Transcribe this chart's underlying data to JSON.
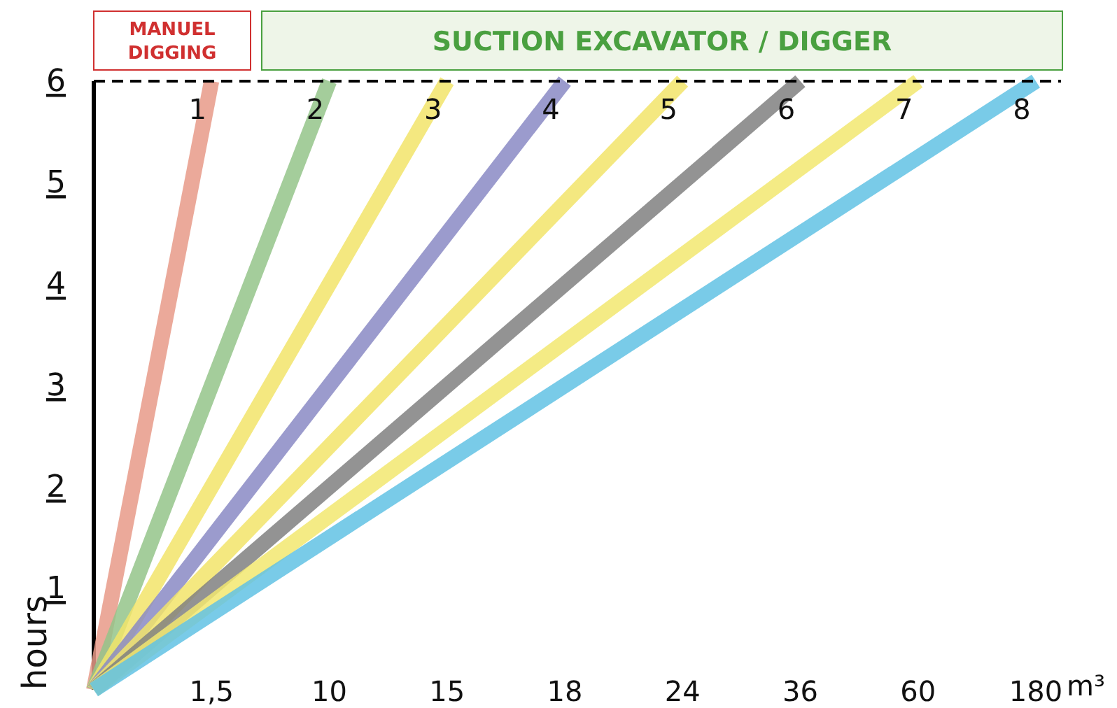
{
  "chart_data": {
    "type": "line",
    "ylabel": "hours",
    "xlabel": "m³",
    "categories": [
      null,
      "1,5",
      "10",
      "15",
      "18",
      "24",
      "36",
      "60",
      "180"
    ],
    "ylim": [
      0,
      6
    ],
    "yticks": [
      1,
      2,
      3,
      4,
      5,
      6
    ],
    "grid": false,
    "legend": false,
    "marker": "none",
    "line_style": "solid",
    "ref_lines": [
      {
        "axis": "y",
        "value": 6,
        "label": null,
        "color": "#000000",
        "line_style": "dashed"
      }
    ],
    "annotations": [
      "MANUEL DIGGING",
      "SUCTION EXCAVATOR / DIGGER"
    ],
    "series": [
      {
        "name": "1",
        "color": "#e89a88",
        "values": [
          0,
          6,
          null,
          null,
          null,
          null,
          null,
          null,
          null
        ]
      },
      {
        "name": "2",
        "color": "#94c48a",
        "values": [
          0,
          null,
          6,
          null,
          null,
          null,
          null,
          null,
          null
        ]
      },
      {
        "name": "3",
        "color": "#f2e46a",
        "values": [
          0,
          null,
          null,
          6,
          null,
          null,
          null,
          null,
          null
        ]
      },
      {
        "name": "4",
        "color": "#8a8ac4",
        "values": [
          0,
          null,
          null,
          null,
          6,
          null,
          null,
          null,
          null
        ]
      },
      {
        "name": "5",
        "color": "#f2e46a",
        "values": [
          0,
          null,
          null,
          null,
          null,
          6,
          null,
          null,
          null
        ]
      },
      {
        "name": "6",
        "color": "#808080",
        "values": [
          0,
          null,
          null,
          null,
          null,
          null,
          6,
          null,
          null
        ]
      },
      {
        "name": "7",
        "color": "#f2e870",
        "values": [
          0,
          null,
          null,
          null,
          null,
          null,
          null,
          6,
          null
        ]
      },
      {
        "name": "8",
        "color": "#62c2e4",
        "values": [
          0,
          null,
          null,
          null,
          null,
          null,
          null,
          null,
          6
        ]
      }
    ]
  }
}
